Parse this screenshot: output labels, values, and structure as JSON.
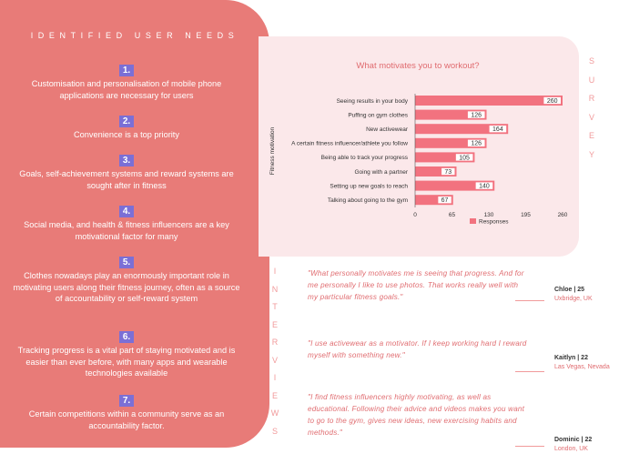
{
  "needs": {
    "title": "IDENTIFIED USER NEEDS",
    "items": [
      {
        "num": "1.",
        "text": "Customisation and personalisation of mobile phone applications are necessary for users"
      },
      {
        "num": "2.",
        "text": "Convenience is a top priority"
      },
      {
        "num": "3.",
        "text": "Goals, self-achievement systems and reward systems are sought after in fitness"
      },
      {
        "num": "4.",
        "text": "Social media, and health & fitness influencers are a key motivational factor for many"
      },
      {
        "num": "5.",
        "text": "Clothes nowadays play an enormously important role in motivating users along their fitness journey, often as a source of accountability or self-reward system"
      },
      {
        "num": "6.",
        "text": "Tracking progress is a vital part of staying motivated and is easier than ever before, with many apps and wearable technologies available"
      },
      {
        "num": "7.",
        "text": "Certain competitions within a community serve as an accountability factor."
      }
    ]
  },
  "survey_label": "SURVEY",
  "interviews_label": "INTERVIEWS",
  "chart_data": {
    "type": "bar",
    "orientation": "horizontal",
    "title": "What motivates you to workout?",
    "ylabel": "Fitness motivation",
    "xlabel": "",
    "categories": [
      "Seeing results in your body",
      "Puffing on gym clothes",
      "New activewear",
      "A certain fitness influencer/athlete you follow",
      "Being able to track your progress",
      "Going with a partner",
      "Setting up new goals to reach",
      "Talking about going to the gym"
    ],
    "series": [
      {
        "name": "Responses",
        "values": [
          260,
          126,
          164,
          126,
          105,
          73,
          140,
          67
        ]
      }
    ],
    "xlim": [
      0,
      260
    ],
    "xticks": [
      "0",
      "65",
      "130",
      "195",
      "260"
    ],
    "color": "#f2727f",
    "grid": false,
    "legend": "bottom"
  },
  "interviews": [
    {
      "quote": "\"What personally motivates me is seeing that progress. And for me personally I like to use photos. That works really well with my particular fitness goals.\"",
      "name": "Chloe | 25",
      "location": "Uxbridge, UK"
    },
    {
      "quote": "\"I use activewear as a motivator. If I keep working hard I reward myself with something new.\"",
      "name": "Kaitlyn | 22",
      "location": "Las Vegas, Nevada"
    },
    {
      "quote": "\"I find fitness influencers highly motivating, as well as educational. Following their advice and videos makes you want to go to the gym, gives new ideas, new exercising habits and methods.\"",
      "name": "Dominic | 22",
      "location": "London, UK"
    }
  ],
  "colors": {
    "panel": "#e87b78",
    "number_badge": "#7b6fd6",
    "bar": "#f2727f",
    "card": "#fbe8ea",
    "accent_text": "#e06c70"
  }
}
